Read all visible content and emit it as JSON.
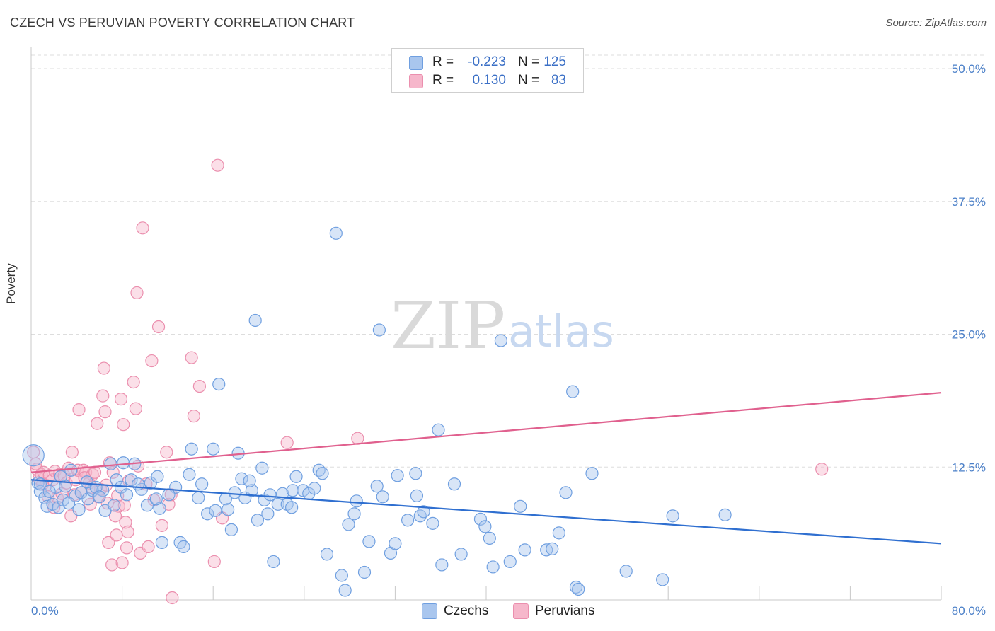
{
  "title": "CZECH VS PERUVIAN POVERTY CORRELATION CHART",
  "source": "Source: ZipAtlas.com",
  "watermark": {
    "zip": "ZIP",
    "atlas": "atlas"
  },
  "legend": {
    "rows": [
      {
        "r_label": "R =",
        "r_value": "-0.223",
        "n_label": "N =",
        "n_value": "125"
      },
      {
        "r_label": "R =",
        "r_value": "0.130",
        "n_label": "N =",
        "n_value": "83"
      }
    ]
  },
  "colors": {
    "czech_fill": "#a9c6ee",
    "czech_stroke": "#6f9fe0",
    "czech_line": "#2f6fd0",
    "peru_fill": "#f6b7cb",
    "peru_stroke": "#eb8fae",
    "peru_line": "#e0608e",
    "tick": "#4a7fc8",
    "grid": "#dddddd"
  },
  "chart_data": {
    "type": "scatter",
    "title": "CZECH VS PERUVIAN POVERTY CORRELATION CHART",
    "xlabel": "",
    "ylabel": "Poverty",
    "xlim": [
      0,
      80
    ],
    "ylim": [
      0,
      50
    ],
    "x_tick_labels": [
      "0.0%",
      "80.0%"
    ],
    "y_ticks": [
      12.5,
      25.0,
      37.5,
      50.0
    ],
    "y_tick_labels": [
      "12.5%",
      "25.0%",
      "37.5%",
      "50.0%"
    ],
    "grid": "horizontal dashed",
    "series": [
      {
        "name": "Czechs",
        "r": -0.223,
        "n": 125,
        "trend": {
          "x": [
            0,
            80
          ],
          "y": [
            11.3,
            5.3
          ]
        },
        "points": [
          [
            0.2,
            13.6
          ],
          [
            0.6,
            11.0
          ],
          [
            0.8,
            10.2
          ],
          [
            1.2,
            9.6
          ],
          [
            1.4,
            8.8
          ],
          [
            1.9,
            9.0
          ],
          [
            2.2,
            10.6
          ],
          [
            2.4,
            8.7
          ],
          [
            2.8,
            9.4
          ],
          [
            3.0,
            10.7
          ],
          [
            3.5,
            12.2
          ],
          [
            3.9,
            9.8
          ],
          [
            4.2,
            8.5
          ],
          [
            4.4,
            10.1
          ],
          [
            5.0,
            9.5
          ],
          [
            5.4,
            10.3
          ],
          [
            6.3,
            10.3
          ],
          [
            6.5,
            8.4
          ],
          [
            7.0,
            12.8
          ],
          [
            7.5,
            11.3
          ],
          [
            7.9,
            10.6
          ],
          [
            8.1,
            12.9
          ],
          [
            9.1,
            12.8
          ],
          [
            8.8,
            11.3
          ],
          [
            9.7,
            10.4
          ],
          [
            10.2,
            8.9
          ],
          [
            10.5,
            11.0
          ],
          [
            11.1,
            11.6
          ],
          [
            11.3,
            8.6
          ],
          [
            11.5,
            5.4
          ],
          [
            11.0,
            9.5
          ],
          [
            13.1,
            5.4
          ],
          [
            12.7,
            10.6
          ],
          [
            13.4,
            5.0
          ],
          [
            13.9,
            11.8
          ],
          [
            14.1,
            14.2
          ],
          [
            14.7,
            9.6
          ],
          [
            15.5,
            8.1
          ],
          [
            16.0,
            14.2
          ],
          [
            16.2,
            8.4
          ],
          [
            16.5,
            20.3
          ],
          [
            17.1,
            9.5
          ],
          [
            17.3,
            8.5
          ],
          [
            17.6,
            6.6
          ],
          [
            18.2,
            13.8
          ],
          [
            18.5,
            11.4
          ],
          [
            18.8,
            9.6
          ],
          [
            19.4,
            10.3
          ],
          [
            19.7,
            26.3
          ],
          [
            19.9,
            7.5
          ],
          [
            20.3,
            12.4
          ],
          [
            20.5,
            9.4
          ],
          [
            20.8,
            8.1
          ],
          [
            21.3,
            3.6
          ],
          [
            21.7,
            9.0
          ],
          [
            22.1,
            10.0
          ],
          [
            22.5,
            9.0
          ],
          [
            22.9,
            8.7
          ],
          [
            23.0,
            10.3
          ],
          [
            23.3,
            11.6
          ],
          [
            23.9,
            10.3
          ],
          [
            24.4,
            10.0
          ],
          [
            24.9,
            10.5
          ],
          [
            25.3,
            12.2
          ],
          [
            25.6,
            11.9
          ],
          [
            26.0,
            4.3
          ],
          [
            26.8,
            34.5
          ],
          [
            27.3,
            2.3
          ],
          [
            27.6,
            0.9
          ],
          [
            27.9,
            7.1
          ],
          [
            28.4,
            8.1
          ],
          [
            28.6,
            9.3
          ],
          [
            29.3,
            2.6
          ],
          [
            29.7,
            5.5
          ],
          [
            30.4,
            10.7
          ],
          [
            30.6,
            25.4
          ],
          [
            30.9,
            9.7
          ],
          [
            31.6,
            4.4
          ],
          [
            32.0,
            5.3
          ],
          [
            32.2,
            11.7
          ],
          [
            33.1,
            7.5
          ],
          [
            33.8,
            11.9
          ],
          [
            33.9,
            9.8
          ],
          [
            34.2,
            7.9
          ],
          [
            34.5,
            8.3
          ],
          [
            35.3,
            7.2
          ],
          [
            35.8,
            16.0
          ],
          [
            36.1,
            3.3
          ],
          [
            37.2,
            10.9
          ],
          [
            37.8,
            4.3
          ],
          [
            39.5,
            7.6
          ],
          [
            39.9,
            6.9
          ],
          [
            40.3,
            5.8
          ],
          [
            40.6,
            3.1
          ],
          [
            41.3,
            24.4
          ],
          [
            42.1,
            3.6
          ],
          [
            43.0,
            8.8
          ],
          [
            43.4,
            4.7
          ],
          [
            45.3,
            4.7
          ],
          [
            45.8,
            4.8
          ],
          [
            46.4,
            6.3
          ],
          [
            47.0,
            10.1
          ],
          [
            47.6,
            19.6
          ],
          [
            47.9,
            1.2
          ],
          [
            48.1,
            1.0
          ],
          [
            49.3,
            11.9
          ],
          [
            52.3,
            2.7
          ],
          [
            55.5,
            1.9
          ],
          [
            56.4,
            7.9
          ],
          [
            61.0,
            8.0
          ],
          [
            0.8,
            10.9
          ],
          [
            1.6,
            10.2
          ],
          [
            2.6,
            11.6
          ],
          [
            3.3,
            9.1
          ],
          [
            4.9,
            11.1
          ],
          [
            5.7,
            10.6
          ],
          [
            6.0,
            9.7
          ],
          [
            7.3,
            8.9
          ],
          [
            8.4,
            9.9
          ],
          [
            9.4,
            10.9
          ],
          [
            12.1,
            9.9
          ],
          [
            15.0,
            10.9
          ],
          [
            17.9,
            10.1
          ],
          [
            19.2,
            11.2
          ],
          [
            21.0,
            9.9
          ]
        ]
      },
      {
        "name": "Peruvians",
        "r": 0.13,
        "n": 83,
        "trend": {
          "x": [
            0,
            80
          ],
          "y": [
            12.0,
            19.5
          ]
        },
        "points": [
          [
            0.2,
            13.9
          ],
          [
            0.5,
            12.3
          ],
          [
            0.7,
            11.4
          ],
          [
            0.9,
            11.8
          ],
          [
            1.1,
            12.0
          ],
          [
            1.3,
            10.8
          ],
          [
            1.6,
            11.7
          ],
          [
            1.9,
            11.3
          ],
          [
            2.1,
            12.1
          ],
          [
            2.3,
            9.6
          ],
          [
            2.5,
            11.8
          ],
          [
            2.7,
            10.0
          ],
          [
            2.9,
            11.7
          ],
          [
            3.1,
            11.0
          ],
          [
            3.3,
            12.4
          ],
          [
            3.5,
            7.9
          ],
          [
            3.6,
            13.9
          ],
          [
            3.9,
            11.3
          ],
          [
            4.1,
            12.2
          ],
          [
            4.2,
            17.9
          ],
          [
            4.4,
            10.1
          ],
          [
            4.6,
            12.2
          ],
          [
            4.8,
            12.0
          ],
          [
            5.1,
            11.0
          ],
          [
            5.2,
            9.0
          ],
          [
            5.4,
            11.8
          ],
          [
            5.6,
            12.0
          ],
          [
            5.8,
            16.6
          ],
          [
            5.9,
            9.7
          ],
          [
            6.1,
            10.4
          ],
          [
            6.3,
            19.2
          ],
          [
            6.4,
            21.8
          ],
          [
            6.5,
            17.7
          ],
          [
            6.6,
            10.8
          ],
          [
            6.8,
            5.4
          ],
          [
            6.9,
            12.9
          ],
          [
            7.1,
            3.3
          ],
          [
            7.2,
            12.0
          ],
          [
            7.5,
            6.1
          ],
          [
            7.6,
            9.8
          ],
          [
            7.7,
            8.8
          ],
          [
            7.9,
            18.9
          ],
          [
            8.0,
            3.5
          ],
          [
            8.1,
            16.5
          ],
          [
            8.2,
            8.9
          ],
          [
            8.3,
            7.3
          ],
          [
            8.4,
            4.9
          ],
          [
            8.5,
            6.4
          ],
          [
            9.0,
            20.5
          ],
          [
            9.2,
            18.0
          ],
          [
            9.3,
            28.9
          ],
          [
            9.6,
            4.4
          ],
          [
            9.8,
            35.0
          ],
          [
            10.1,
            10.9
          ],
          [
            10.3,
            5.0
          ],
          [
            10.6,
            22.5
          ],
          [
            11.2,
            25.7
          ],
          [
            11.5,
            7.0
          ],
          [
            11.9,
            13.9
          ],
          [
            12.1,
            9.0
          ],
          [
            12.3,
            9.9
          ],
          [
            12.4,
            0.2
          ],
          [
            14.1,
            22.8
          ],
          [
            14.3,
            17.3
          ],
          [
            14.8,
            20.1
          ],
          [
            16.1,
            3.6
          ],
          [
            16.4,
            40.9
          ],
          [
            16.8,
            7.7
          ],
          [
            22.5,
            14.8
          ],
          [
            28.7,
            15.2
          ],
          [
            69.5,
            12.3
          ],
          [
            0.4,
            12.8
          ],
          [
            1.0,
            10.9
          ],
          [
            1.5,
            9.7
          ],
          [
            2.0,
            8.7
          ],
          [
            3.8,
            9.9
          ],
          [
            4.7,
            11.5
          ],
          [
            5.3,
            10.6
          ],
          [
            6.7,
            9.1
          ],
          [
            7.4,
            7.9
          ],
          [
            8.6,
            11.2
          ],
          [
            9.4,
            12.6
          ],
          [
            10.8,
            9.4
          ]
        ]
      }
    ]
  },
  "bottom_legend": {
    "czechs": "Czechs",
    "peruvians": "Peruvians"
  }
}
